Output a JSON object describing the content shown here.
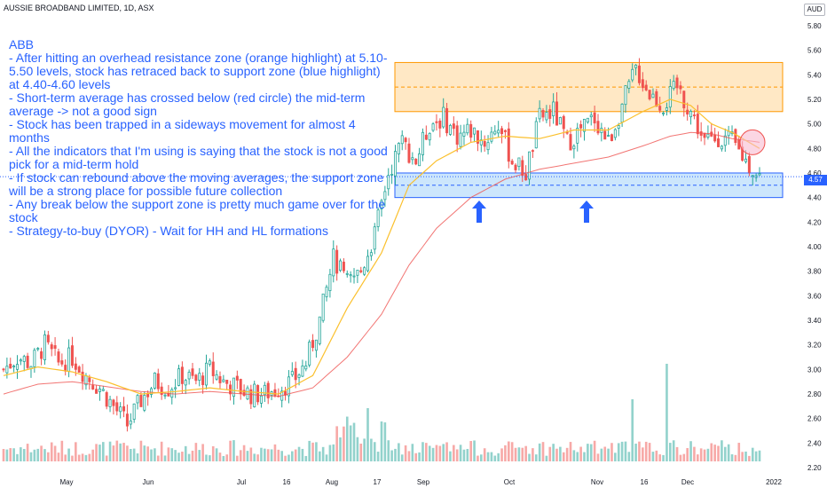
{
  "header": {
    "title": "AUSSIE BROADBAND LIMITED, 1D, ASX"
  },
  "currency": "AUD",
  "current_price_label": "4.57",
  "annotation": {
    "lines": [
      "ABB",
      "- After hitting an overhead resistance zone (orange highlight) at 5.10-5.50 levels, stock has retraced back to support zone (blue highlight) at 4.40-4.60 levels",
      "- Short-term average has crossed below (red circle) the mid-term average -> not a good sign",
      "- Stock has been trapped in a sideways movement for almost 4 months",
      "- All the indicators that I'm using is saying that the stock is not a good pick for a mid-term hold",
      "- If stock can rebound above the moving averages, the support zone will be a strong place for possible future collection",
      "- Any break below the support zone is pretty much game over for the stock",
      "- Strategy-to-buy (DYOR) - Wait for HH and HL formations"
    ]
  },
  "colors": {
    "up": "#26a69a",
    "down": "#ef5350",
    "ma_short": "#fbc02d",
    "ma_long": "#ef5350",
    "resistance_fill": "#ffe0b2",
    "resistance_border": "#ff9800",
    "support_fill": "#bbdefb",
    "support_border": "#2962ff",
    "arrow": "#2962ff"
  },
  "chart_data": {
    "type": "candlestick",
    "title": "AUSSIE BROADBAND LIMITED, 1D, ASX",
    "ylim": [
      2.15,
      5.85
    ],
    "y_ticks": [
      "5.80",
      "5.60",
      "5.40",
      "5.20",
      "5.00",
      "4.80",
      "4.60",
      "4.40",
      "4.20",
      "4.00",
      "3.80",
      "3.60",
      "3.40",
      "3.20",
      "3.00",
      "2.80",
      "2.60",
      "2.40",
      "2.20"
    ],
    "x_ticks": [
      "May",
      "Jun",
      "Jul",
      "16",
      "Aug",
      "17",
      "Sep",
      "Oct",
      "Nov",
      "16",
      "Dec",
      "2022"
    ],
    "resistance_zone": [
      5.1,
      5.5
    ],
    "support_zone": [
      4.4,
      4.6
    ],
    "close_path": [
      [
        0,
        3.0
      ],
      [
        4,
        3.1
      ],
      [
        8,
        3.05
      ],
      [
        12,
        3.2
      ],
      [
        16,
        3.05
      ],
      [
        20,
        3.1
      ],
      [
        24,
        2.95
      ],
      [
        28,
        2.85
      ],
      [
        32,
        2.7
      ],
      [
        36,
        2.55
      ],
      [
        40,
        2.75
      ],
      [
        44,
        2.9
      ],
      [
        48,
        2.85
      ],
      [
        52,
        2.95
      ],
      [
        56,
        2.9
      ],
      [
        60,
        3.0
      ],
      [
        64,
        2.9
      ],
      [
        68,
        2.85
      ],
      [
        72,
        2.8
      ],
      [
        76,
        2.8
      ],
      [
        80,
        2.85
      ],
      [
        84,
        2.9
      ],
      [
        88,
        3.05
      ],
      [
        92,
        3.4
      ],
      [
        96,
        3.9
      ],
      [
        100,
        3.7
      ],
      [
        104,
        3.8
      ],
      [
        108,
        4.1
      ],
      [
        112,
        4.6
      ],
      [
        116,
        4.85
      ],
      [
        120,
        4.7
      ],
      [
        124,
        5.0
      ],
      [
        128,
        5.05
      ],
      [
        132,
        4.9
      ],
      [
        136,
        4.95
      ],
      [
        140,
        4.85
      ],
      [
        144,
        5.0
      ],
      [
        148,
        4.7
      ],
      [
        152,
        4.6
      ],
      [
        156,
        5.05
      ],
      [
        160,
        5.1
      ],
      [
        164,
        4.85
      ],
      [
        168,
        4.95
      ],
      [
        172,
        5.05
      ],
      [
        176,
        4.85
      ],
      [
        180,
        5.15
      ],
      [
        184,
        5.45
      ],
      [
        188,
        5.25
      ],
      [
        192,
        5.15
      ],
      [
        196,
        5.3
      ],
      [
        200,
        5.1
      ],
      [
        204,
        4.85
      ],
      [
        208,
        4.9
      ],
      [
        212,
        4.85
      ],
      [
        216,
        4.7
      ],
      [
        220,
        4.57
      ]
    ],
    "ma_short_path": [
      [
        0,
        2.95
      ],
      [
        10,
        3.02
      ],
      [
        20,
        2.98
      ],
      [
        30,
        2.9
      ],
      [
        40,
        2.8
      ],
      [
        50,
        2.82
      ],
      [
        60,
        2.85
      ],
      [
        70,
        2.82
      ],
      [
        80,
        2.8
      ],
      [
        90,
        2.95
      ],
      [
        100,
        3.5
      ],
      [
        110,
        3.95
      ],
      [
        118,
        4.5
      ],
      [
        126,
        4.7
      ],
      [
        136,
        4.85
      ],
      [
        146,
        4.9
      ],
      [
        156,
        4.88
      ],
      [
        166,
        4.95
      ],
      [
        176,
        4.95
      ],
      [
        186,
        5.1
      ],
      [
        194,
        5.2
      ],
      [
        200,
        5.15
      ],
      [
        206,
        5.0
      ],
      [
        212,
        4.93
      ],
      [
        220,
        4.8
      ]
    ],
    "ma_long_path": [
      [
        0,
        2.8
      ],
      [
        10,
        2.88
      ],
      [
        20,
        2.9
      ],
      [
        30,
        2.86
      ],
      [
        40,
        2.82
      ],
      [
        50,
        2.8
      ],
      [
        60,
        2.82
      ],
      [
        70,
        2.8
      ],
      [
        80,
        2.78
      ],
      [
        90,
        2.85
      ],
      [
        100,
        3.1
      ],
      [
        110,
        3.45
      ],
      [
        118,
        3.85
      ],
      [
        126,
        4.15
      ],
      [
        136,
        4.4
      ],
      [
        146,
        4.55
      ],
      [
        156,
        4.63
      ],
      [
        166,
        4.68
      ],
      [
        176,
        4.73
      ],
      [
        186,
        4.82
      ],
      [
        194,
        4.9
      ],
      [
        200,
        4.93
      ],
      [
        206,
        4.92
      ],
      [
        212,
        4.88
      ],
      [
        220,
        4.85
      ]
    ],
    "series": [
      {
        "name": "Price (candles)"
      },
      {
        "name": "Short-term MA"
      },
      {
        "name": "Mid-term MA"
      },
      {
        "name": "Volume"
      }
    ]
  }
}
